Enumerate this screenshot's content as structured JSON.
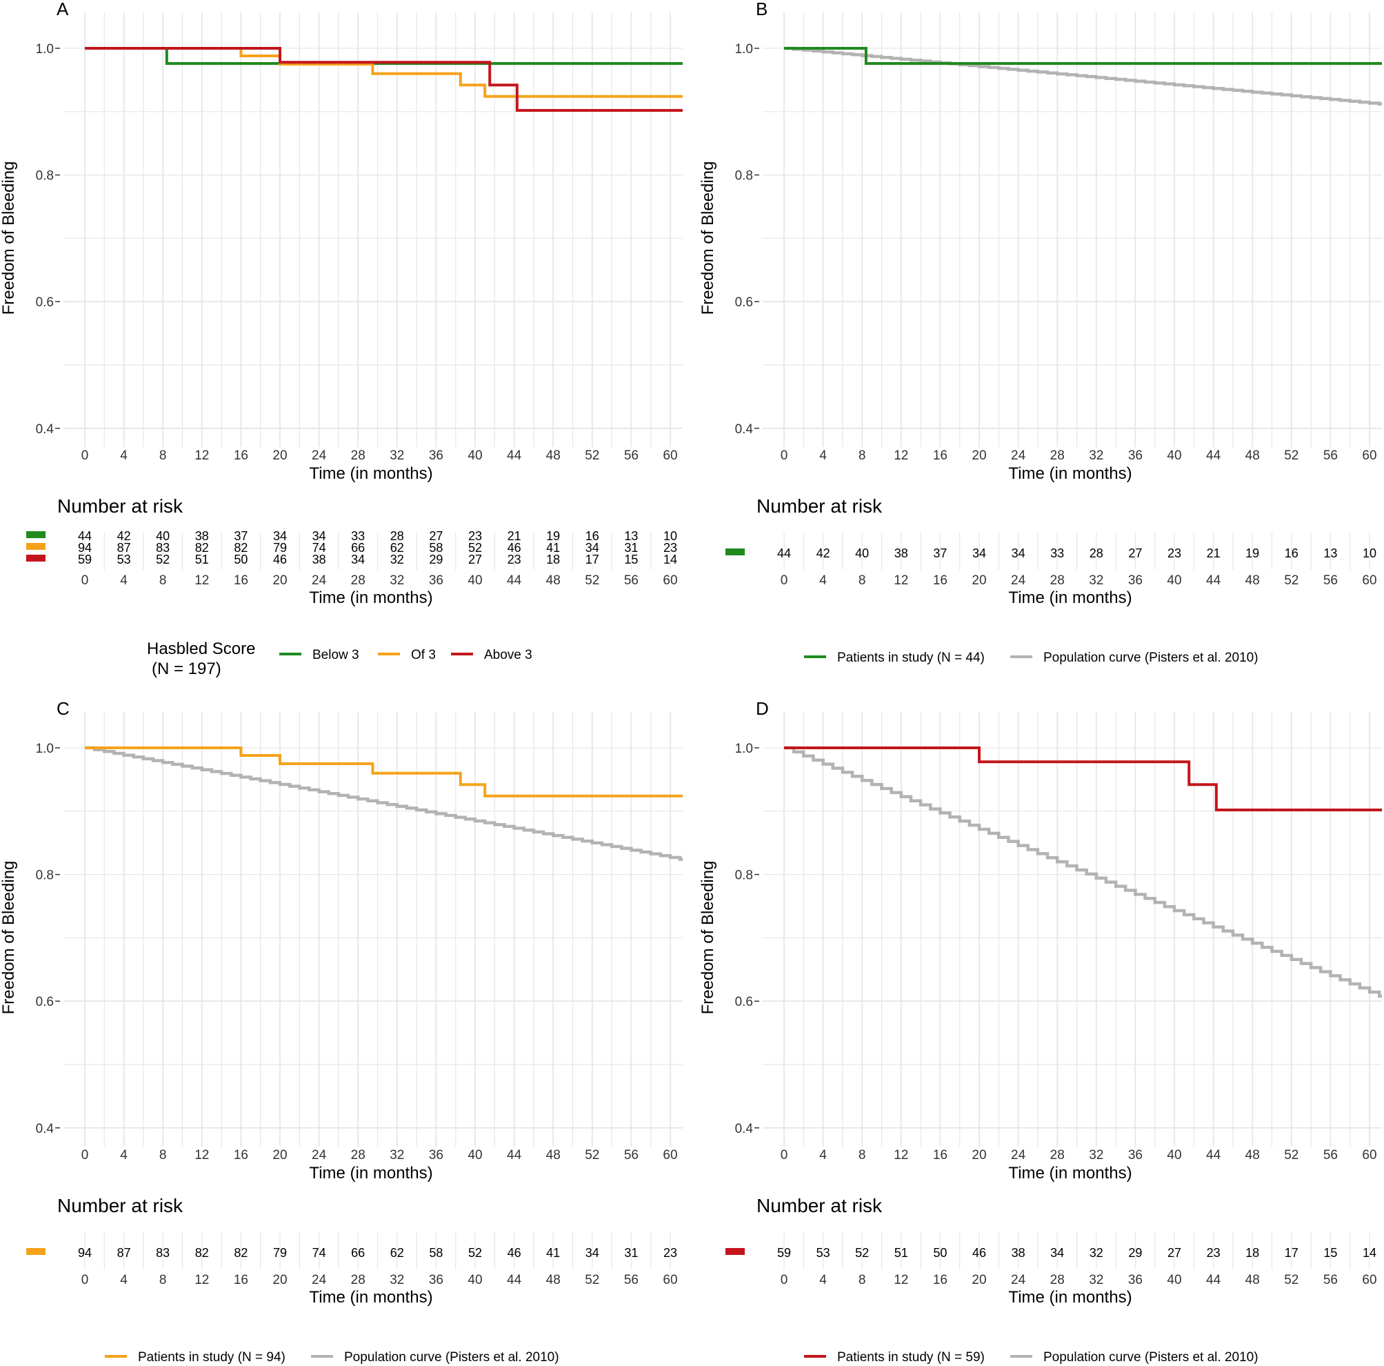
{
  "colors": {
    "green": "#1f8a1f",
    "orange": "#f5a21b",
    "red": "#c4151c",
    "gray": "#b3b3b3",
    "grid": "#e6e6e6"
  },
  "common": {
    "ylabel": "Freedom of Bleeding",
    "xlabel": "Time (in months)",
    "risk_title": "Number at risk",
    "x_ticks": [
      "0",
      "4",
      "8",
      "12",
      "16",
      "20",
      "24",
      "28",
      "32",
      "36",
      "40",
      "44",
      "48",
      "52",
      "56",
      "60"
    ],
    "y_ticks": [
      "0.4",
      "0.6",
      "0.8",
      "1.0"
    ]
  },
  "chart_data": [
    {
      "panel": "A",
      "type": "line",
      "step": true,
      "xlabel": "Time (in months)",
      "ylabel": "Freedom of Bleeding",
      "xlim": [
        -2,
        61
      ],
      "ylim": [
        0.37,
        1.02
      ],
      "series": [
        {
          "name": "Below 3",
          "color": "green",
          "x": [
            0,
            8.4,
            61
          ],
          "y": [
            1.0,
            0.976,
            0.976
          ]
        },
        {
          "name": "Of 3",
          "color": "orange",
          "x": [
            0,
            16,
            20,
            29.5,
            38.5,
            41,
            61
          ],
          "y": [
            1.0,
            0.988,
            0.975,
            0.96,
            0.942,
            0.924,
            0.924
          ]
        },
        {
          "name": "Above 3",
          "color": "red",
          "x": [
            0,
            20,
            41.5,
            44.3,
            61
          ],
          "y": [
            1.0,
            0.978,
            0.942,
            0.902,
            0.902
          ]
        }
      ],
      "risk_table": [
        {
          "color": "green",
          "values": [
            "44",
            "42",
            "40",
            "38",
            "37",
            "34",
            "34",
            "33",
            "28",
            "27",
            "23",
            "21",
            "19",
            "16",
            "13",
            "10"
          ]
        },
        {
          "color": "orange",
          "values": [
            "94",
            "87",
            "83",
            "82",
            "82",
            "79",
            "74",
            "66",
            "62",
            "58",
            "52",
            "46",
            "41",
            "34",
            "31",
            "23"
          ]
        },
        {
          "color": "red",
          "values": [
            "59",
            "53",
            "52",
            "51",
            "50",
            "46",
            "38",
            "34",
            "32",
            "29",
            "27",
            "23",
            "18",
            "17",
            "15",
            "14"
          ]
        }
      ],
      "legend": {
        "title": "Hasbled Score",
        "subtitle": "(N = 197)",
        "items": [
          "Below 3",
          "Of 3",
          "Above 3"
        ]
      }
    },
    {
      "panel": "B",
      "type": "line",
      "step": true,
      "xlabel": "Time (in months)",
      "ylabel": "Freedom of Bleeding",
      "xlim": [
        -2,
        61
      ],
      "ylim": [
        0.37,
        1.02
      ],
      "series": [
        {
          "name": "Patients in study (N = 44)",
          "color": "green",
          "x": [
            0,
            8.4,
            61
          ],
          "y": [
            1.0,
            0.976,
            0.976
          ]
        },
        {
          "name": "Population curve (Pisters et al. 2010)",
          "color": "gray",
          "x": [
            0,
            61
          ],
          "y": [
            1.0,
            0.912
          ]
        }
      ],
      "risk_table": [
        {
          "color": "green",
          "values": [
            "44",
            "42",
            "40",
            "38",
            "37",
            "34",
            "34",
            "33",
            "28",
            "27",
            "23",
            "21",
            "19",
            "16",
            "13",
            "10"
          ]
        }
      ],
      "legend": {
        "items": [
          "Patients in study (N = 44)",
          "Population curve (Pisters et al. 2010)"
        ]
      }
    },
    {
      "panel": "C",
      "type": "line",
      "step": true,
      "xlabel": "Time (in months)",
      "ylabel": "Freedom of Bleeding",
      "xlim": [
        -2,
        61
      ],
      "ylim": [
        0.37,
        1.02
      ],
      "series": [
        {
          "name": "Patients in study (N = 94)",
          "color": "orange",
          "x": [
            0,
            16,
            20,
            29.5,
            38.5,
            41,
            61
          ],
          "y": [
            1.0,
            0.988,
            0.975,
            0.96,
            0.942,
            0.924,
            0.924
          ]
        },
        {
          "name": "Population curve (Pisters et al. 2010)",
          "color": "gray",
          "x": [
            0,
            61
          ],
          "y": [
            1.0,
            0.824
          ]
        }
      ],
      "risk_table": [
        {
          "color": "orange",
          "values": [
            "94",
            "87",
            "83",
            "82",
            "82",
            "79",
            "74",
            "66",
            "62",
            "58",
            "52",
            "46",
            "41",
            "34",
            "31",
            "23"
          ]
        }
      ],
      "legend": {
        "items": [
          "Patients in study (N = 94)",
          "Population curve (Pisters et al. 2010)"
        ]
      }
    },
    {
      "panel": "D",
      "type": "line",
      "step": true,
      "xlabel": "Time (in months)",
      "ylabel": "Freedom of Bleeding",
      "xlim": [
        -2,
        61
      ],
      "ylim": [
        0.37,
        1.02
      ],
      "series": [
        {
          "name": "Patients in study (N = 59)",
          "color": "red",
          "x": [
            0,
            20,
            41.5,
            44.3,
            61
          ],
          "y": [
            1.0,
            0.978,
            0.942,
            0.902,
            0.902
          ]
        },
        {
          "name": "Population curve (Pisters et al. 2010)",
          "color": "gray",
          "x": [
            0,
            61
          ],
          "y": [
            1.0,
            0.608
          ]
        }
      ],
      "risk_table": [
        {
          "color": "red",
          "values": [
            "59",
            "53",
            "52",
            "51",
            "50",
            "46",
            "38",
            "34",
            "32",
            "29",
            "27",
            "23",
            "18",
            "17",
            "15",
            "14"
          ]
        }
      ],
      "legend": {
        "items": [
          "Patients in study (N = 59)",
          "Population curve (Pisters et al. 2010)"
        ]
      }
    }
  ]
}
